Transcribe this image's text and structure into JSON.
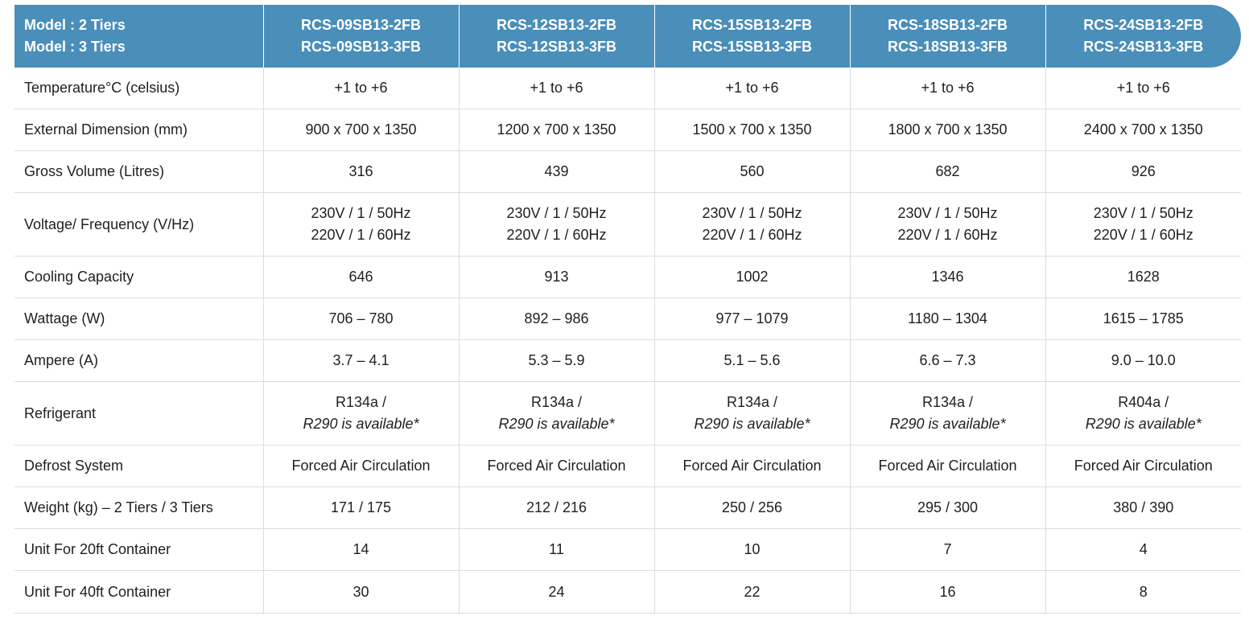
{
  "header": {
    "label_lines": [
      "Model : 2 Tiers",
      "Model : 3 Tiers"
    ],
    "models": [
      [
        "RCS-09SB13-2FB",
        "RCS-09SB13-3FB"
      ],
      [
        "RCS-12SB13-2FB",
        "RCS-12SB13-3FB"
      ],
      [
        "RCS-15SB13-2FB",
        "RCS-15SB13-3FB"
      ],
      [
        "RCS-18SB13-2FB",
        "RCS-18SB13-3FB"
      ],
      [
        "RCS-24SB13-2FB",
        "RCS-24SB13-3FB"
      ]
    ]
  },
  "rows": [
    {
      "label": "Temperature°C (celsius)",
      "values": [
        "+1 to +6",
        "+1 to +6",
        "+1 to +6",
        "+1 to +6",
        "+1 to +6"
      ]
    },
    {
      "label": "External Dimension (mm)",
      "values": [
        "900 x 700 x 1350",
        "1200 x 700 x 1350",
        "1500 x 700 x 1350",
        "1800 x 700 x 1350",
        "2400 x 700 x 1350"
      ]
    },
    {
      "label": "Gross Volume (Litres)",
      "values": [
        "316",
        "439",
        "560",
        "682",
        "926"
      ]
    },
    {
      "label": "Voltage/ Frequency (V/Hz)",
      "values": [
        [
          "230V / 1 / 50Hz",
          "220V / 1 / 60Hz"
        ],
        [
          "230V / 1 / 50Hz",
          "220V / 1 / 60Hz"
        ],
        [
          "230V / 1 / 50Hz",
          "220V / 1 / 60Hz"
        ],
        [
          "230V / 1 / 50Hz",
          "220V / 1 / 60Hz"
        ],
        [
          "230V / 1 / 50Hz",
          "220V / 1 / 60Hz"
        ]
      ]
    },
    {
      "label": "Cooling Capacity",
      "values": [
        "646",
        "913",
        "1002",
        "1346",
        "1628"
      ]
    },
    {
      "label": "Wattage (W)",
      "values": [
        "706 – 780",
        "892 – 986",
        "977 – 1079",
        "1180 – 1304",
        "1615 – 1785"
      ]
    },
    {
      "label": "Ampere (A)",
      "values": [
        "3.7 – 4.1",
        "5.3 – 5.9",
        "5.1 – 5.6",
        "6.6 – 7.3",
        "9.0 – 10.0"
      ]
    },
    {
      "label": "Refrigerant",
      "values": [
        [
          "R134a /",
          "R290 is available*"
        ],
        [
          "R134a /",
          "R290 is available*"
        ],
        [
          "R134a /",
          "R290 is available*"
        ],
        [
          "R134a /",
          "R290 is available*"
        ],
        [
          "R404a /",
          "R290 is available*"
        ]
      ]
    },
    {
      "label": "Defrost System",
      "values": [
        "Forced Air Circulation",
        "Forced Air Circulation",
        "Forced Air Circulation",
        "Forced Air Circulation",
        "Forced Air Circulation"
      ]
    },
    {
      "label": "Weight (kg) – 2 Tiers / 3 Tiers",
      "values": [
        "171 / 175",
        "212 / 216",
        "250 / 256",
        "295 / 300",
        "380 / 390"
      ]
    },
    {
      "label": "Unit For 20ft Container",
      "values": [
        "14",
        "11",
        "10",
        "7",
        "4"
      ]
    },
    {
      "label": "Unit For 40ft Container",
      "values": [
        "30",
        "24",
        "22",
        "16",
        "8"
      ]
    }
  ],
  "colors": {
    "header_bg": "#4a8eba",
    "header_text": "#ffffff",
    "grid_line": "#dcdcdc",
    "body_text": "#1f1f1f"
  }
}
